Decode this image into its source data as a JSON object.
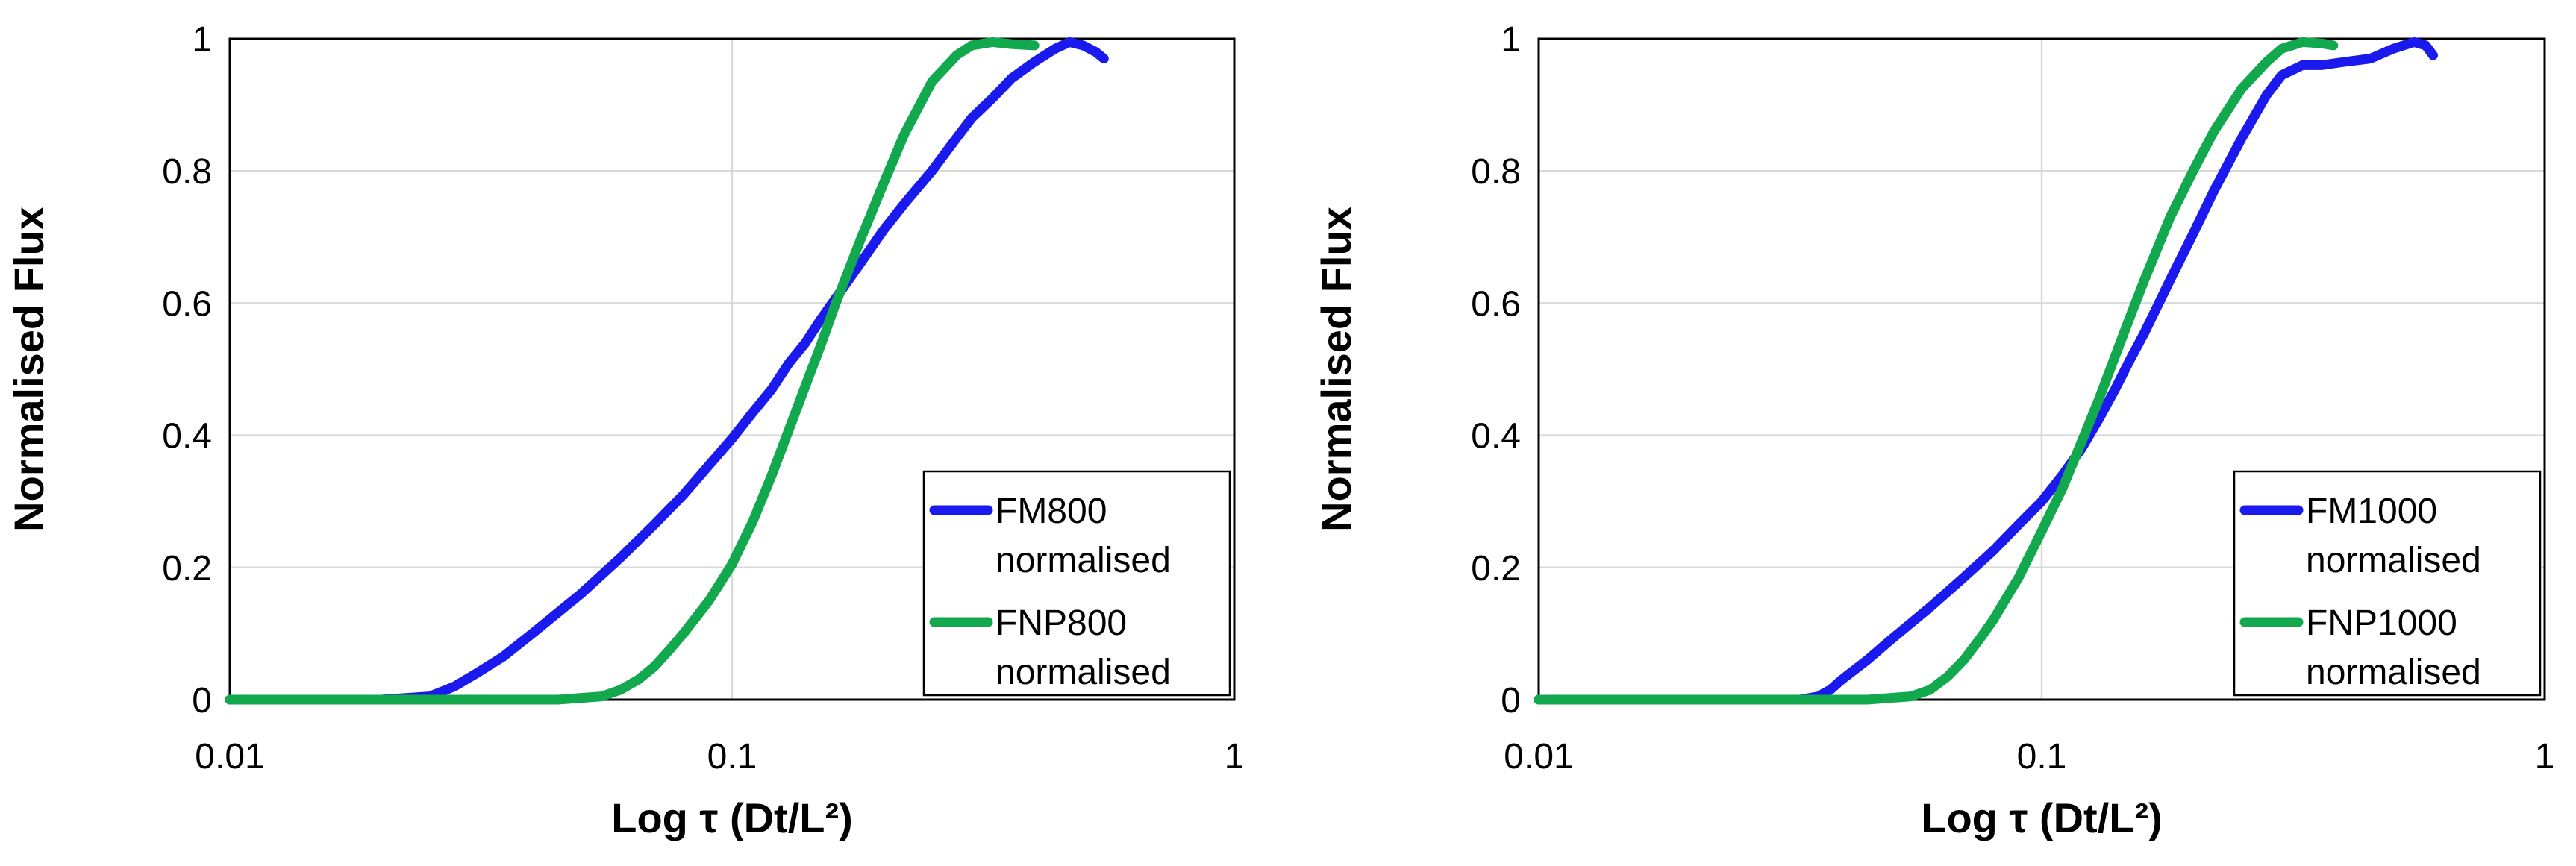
{
  "chart_data": [
    {
      "type": "line",
      "xscale": "log",
      "xlabel": "Log τ (Dt/L²)",
      "ylabel": "Normalised Flux",
      "xlim": [
        0.01,
        1
      ],
      "ylim": [
        0,
        1
      ],
      "xticks": [
        0.01,
        0.1,
        1
      ],
      "xtick_labels": [
        "0.01",
        "0.1",
        "1"
      ],
      "yticks": [
        0,
        0.2,
        0.4,
        0.6,
        0.8,
        1
      ],
      "ytick_labels": [
        "0",
        "0.2",
        "0.4",
        "0.6",
        "0.8",
        "1"
      ],
      "grid": true,
      "legend_position": "bottom-right",
      "series": [
        {
          "name": "FM800 normalised",
          "legend_lines": [
            "FM800",
            "normalised"
          ],
          "color": "#1a1aee",
          "x": [
            0.01,
            0.02,
            0.025,
            0.028,
            0.031,
            0.035,
            0.04,
            0.05,
            0.06,
            0.07,
            0.08,
            0.09,
            0.1,
            0.11,
            0.12,
            0.13,
            0.14,
            0.15,
            0.16,
            0.18,
            0.2,
            0.22,
            0.25,
            0.28,
            0.3,
            0.33,
            0.36,
            0.4,
            0.44,
            0.47,
            0.5,
            0.53,
            0.55
          ],
          "y": [
            0,
            0,
            0.005,
            0.02,
            0.04,
            0.065,
            0.1,
            0.16,
            0.215,
            0.265,
            0.31,
            0.355,
            0.395,
            0.435,
            0.47,
            0.51,
            0.54,
            0.575,
            0.605,
            0.66,
            0.71,
            0.75,
            0.8,
            0.85,
            0.88,
            0.91,
            0.94,
            0.965,
            0.985,
            0.995,
            0.99,
            0.98,
            0.97
          ]
        },
        {
          "name": "FNP800 normalised",
          "legend_lines": [
            "FNP800",
            "normalised"
          ],
          "color": "#12a84e",
          "x": [
            0.01,
            0.045,
            0.055,
            0.06,
            0.065,
            0.07,
            0.075,
            0.08,
            0.09,
            0.1,
            0.11,
            0.12,
            0.13,
            0.14,
            0.15,
            0.16,
            0.18,
            0.2,
            0.22,
            0.25,
            0.28,
            0.3,
            0.33,
            0.36,
            0.4
          ],
          "y": [
            0,
            0,
            0.005,
            0.015,
            0.03,
            0.05,
            0.075,
            0.1,
            0.15,
            0.205,
            0.27,
            0.34,
            0.41,
            0.475,
            0.535,
            0.595,
            0.695,
            0.78,
            0.855,
            0.935,
            0.975,
            0.99,
            0.995,
            0.992,
            0.99
          ]
        }
      ]
    },
    {
      "type": "line",
      "xscale": "log",
      "xlabel": "Log τ (Dt/L²)",
      "ylabel": "Normalised Flux",
      "xlim": [
        0.01,
        1
      ],
      "ylim": [
        0,
        1
      ],
      "xticks": [
        0.01,
        0.1,
        1
      ],
      "xtick_labels": [
        "0.01",
        "0.1",
        "1"
      ],
      "yticks": [
        0,
        0.2,
        0.4,
        0.6,
        0.8,
        1
      ],
      "ytick_labels": [
        "0",
        "0.2",
        "0.4",
        "0.6",
        "0.8",
        "1"
      ],
      "grid": true,
      "legend_position": "bottom-right",
      "series": [
        {
          "name": "FM1000 normalised",
          "legend_lines": [
            "FM1000",
            "normalised"
          ],
          "color": "#1a1aee",
          "x": [
            0.01,
            0.033,
            0.036,
            0.038,
            0.04,
            0.045,
            0.05,
            0.06,
            0.07,
            0.08,
            0.09,
            0.1,
            0.11,
            0.12,
            0.13,
            0.14,
            0.15,
            0.16,
            0.18,
            0.2,
            0.22,
            0.25,
            0.28,
            0.3,
            0.33,
            0.36,
            0.4,
            0.45,
            0.5,
            0.55,
            0.58,
            0.6
          ],
          "y": [
            0,
            0,
            0.005,
            0.015,
            0.03,
            0.06,
            0.09,
            0.14,
            0.185,
            0.225,
            0.265,
            0.3,
            0.34,
            0.38,
            0.425,
            0.47,
            0.515,
            0.555,
            0.635,
            0.705,
            0.77,
            0.85,
            0.915,
            0.945,
            0.96,
            0.96,
            0.965,
            0.97,
            0.985,
            0.995,
            0.99,
            0.975
          ]
        },
        {
          "name": "FNP1000 normalised",
          "legend_lines": [
            "FNP1000",
            "normalised"
          ],
          "color": "#12a84e",
          "x": [
            0.01,
            0.045,
            0.055,
            0.06,
            0.065,
            0.07,
            0.075,
            0.08,
            0.09,
            0.1,
            0.11,
            0.12,
            0.13,
            0.14,
            0.15,
            0.16,
            0.18,
            0.2,
            0.22,
            0.25,
            0.28,
            0.3,
            0.33,
            0.36,
            0.38
          ],
          "y": [
            0,
            0,
            0.005,
            0.015,
            0.035,
            0.06,
            0.09,
            0.12,
            0.185,
            0.255,
            0.32,
            0.39,
            0.455,
            0.52,
            0.58,
            0.635,
            0.73,
            0.8,
            0.86,
            0.925,
            0.965,
            0.985,
            0.995,
            0.993,
            0.99
          ]
        }
      ]
    }
  ]
}
